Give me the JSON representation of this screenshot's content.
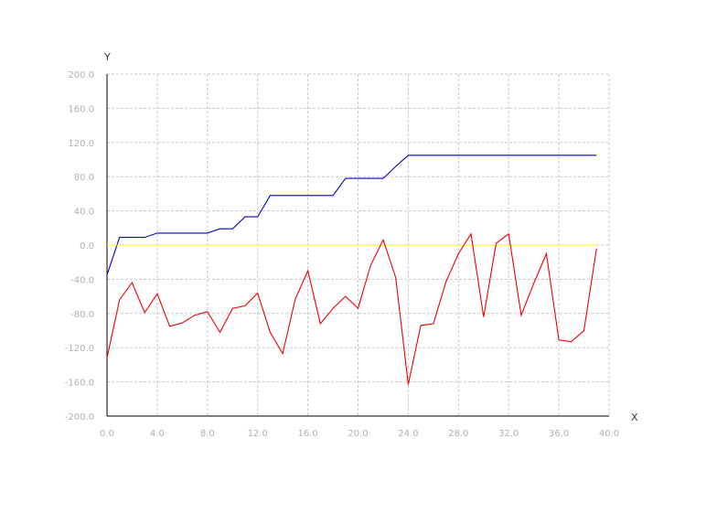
{
  "chart_data": {
    "type": "line",
    "xlabel": "X",
    "ylabel": "Y",
    "xlim": [
      0,
      40
    ],
    "ylim": [
      -200,
      200
    ],
    "x_ticks": [
      "0.0",
      "4.0",
      "8.0",
      "12.0",
      "16.0",
      "20.0",
      "24.0",
      "28.0",
      "32.0",
      "36.0",
      "40.0"
    ],
    "y_ticks": [
      "200.0",
      "160.0",
      "120.0",
      "80.0",
      "40.0",
      "0.0",
      "-40.0",
      "-80.0",
      "-120.0",
      "-160.0",
      "-200.0"
    ],
    "grid": true,
    "x": [
      0,
      1,
      2,
      3,
      4,
      5,
      6,
      7,
      8,
      9,
      10,
      11,
      12,
      13,
      14,
      15,
      16,
      17,
      18,
      19,
      20,
      21,
      22,
      23,
      24,
      25,
      26,
      27,
      28,
      29,
      30,
      31,
      32,
      33,
      34,
      35,
      36,
      37,
      38,
      39
    ],
    "series": [
      {
        "color": "#0000cc",
        "values": [
          -35,
          9,
          9,
          9,
          14,
          14,
          14,
          14,
          14,
          19,
          19,
          33,
          33,
          58,
          58,
          58,
          58,
          58,
          58,
          78,
          78,
          78,
          78,
          92,
          105,
          105,
          105,
          105,
          105,
          105,
          105,
          105,
          105,
          105,
          105,
          105,
          105,
          105,
          105,
          105
        ]
      },
      {
        "color": "#ffff00",
        "values": [
          0,
          0,
          0,
          0,
          0,
          0,
          0,
          0,
          0,
          0,
          0,
          0,
          0,
          0,
          0,
          0,
          0,
          0,
          0,
          0,
          0,
          0,
          0,
          0,
          0,
          0,
          0,
          0,
          0,
          0,
          0,
          0,
          0,
          0,
          0,
          0,
          0,
          0,
          0,
          0
        ]
      },
      {
        "color": "#ee0000",
        "values": [
          -132,
          -64,
          -44,
          -79,
          -57,
          -95,
          -91,
          -82,
          -78,
          -102,
          -74,
          -71,
          -56,
          -102,
          -127,
          -63,
          -30,
          -92,
          -74,
          -60,
          -74,
          -24,
          6,
          -38,
          -163,
          -94,
          -92,
          -43,
          -10,
          13,
          -84,
          2,
          13,
          -82,
          -45,
          -10,
          -111,
          -113,
          -100,
          -4
        ]
      }
    ]
  }
}
